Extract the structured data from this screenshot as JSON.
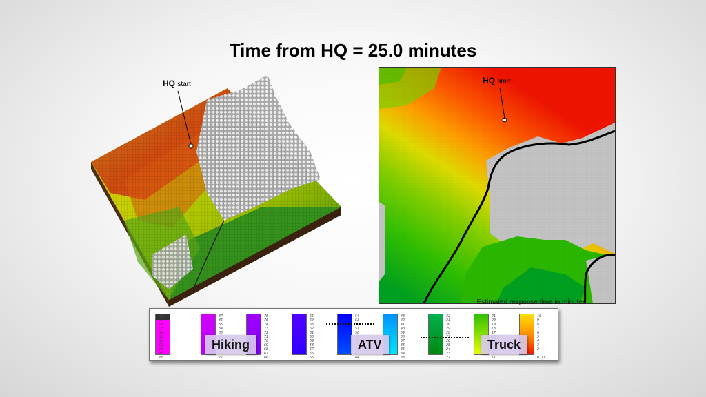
{
  "title": "Time from HQ = 25.0 minutes",
  "hq_label_bold": "HQ",
  "hq_label_small": "start",
  "legend": {
    "caption": "Estimated response time in minutes",
    "modes": [
      "Hiking",
      "ATV",
      "Truck"
    ],
    "columns": [
      [
        "100",
        "97",
        "96",
        "95",
        "94",
        "93",
        "92",
        "91",
        "90",
        "89",
        "88"
      ],
      [
        "87",
        "86",
        "85",
        "84",
        "83",
        "82",
        "81",
        "80",
        "79",
        "78",
        "77"
      ],
      [
        "76",
        "75",
        "74",
        "73",
        "72",
        "71",
        "70",
        "69",
        "68",
        "67",
        "66"
      ],
      [
        "65",
        "64",
        "63",
        "62",
        "61",
        "60",
        "59",
        "58",
        "57",
        "56",
        "55"
      ],
      [
        "54",
        "53",
        "52",
        "51",
        "50",
        "49",
        "48",
        "47",
        "46",
        "45",
        "44"
      ],
      [
        "43",
        "42",
        "41",
        "40",
        "39",
        "38",
        "37",
        "36",
        "35",
        "34",
        "33"
      ],
      [
        "32",
        "31",
        "30",
        "29",
        "28",
        "27",
        "26",
        "25",
        "24",
        "23",
        "22"
      ],
      [
        "21",
        "20",
        "19",
        "18",
        "17",
        "16",
        "15",
        "14",
        "13",
        "12",
        "11"
      ],
      [
        "10",
        "9",
        "8",
        "7",
        "6",
        "5",
        "4",
        "3",
        "2",
        "1",
        "0.11"
      ]
    ]
  },
  "colors": {
    "magenta": "#ff00ff",
    "violet": "#9b00ff",
    "blue": "#3000ff",
    "cyan": "#00c8ff",
    "green": "#00a020",
    "lime": "#2ed000",
    "yellow": "#ffe000",
    "orange": "#ff6a00",
    "red": "#f01400",
    "gray": "#c4c4c4"
  }
}
